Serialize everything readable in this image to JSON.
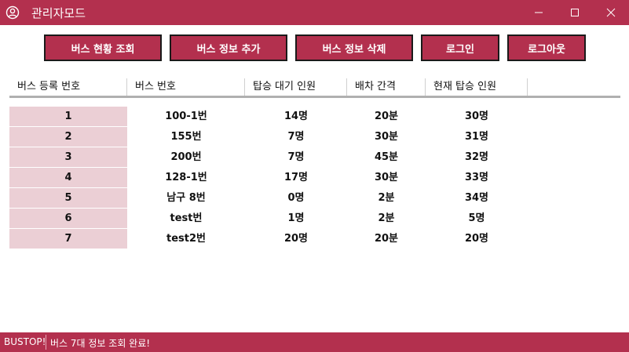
{
  "window": {
    "title": "관리자모드",
    "icon": "user-circle-icon"
  },
  "colors": {
    "accent": "#b3304e",
    "first_column_bg": "#ebcfd5"
  },
  "toolbar": {
    "buttons": [
      {
        "label": "버스 현황 조회"
      },
      {
        "label": "버스 정보 추가"
      },
      {
        "label": "버스 정보 삭제"
      },
      {
        "label": "로그인"
      },
      {
        "label": "로그아웃"
      }
    ]
  },
  "table": {
    "columns": [
      "버스 등록 번호",
      "버스 번호",
      "탑승 대기 인원",
      "배차 간격",
      "현재 탑승 인원"
    ],
    "rows": [
      [
        "1",
        "100-1번",
        "14명",
        "20분",
        "30명"
      ],
      [
        "2",
        "155번",
        "7명",
        "30분",
        "31명"
      ],
      [
        "3",
        "200번",
        "7명",
        "45분",
        "32명"
      ],
      [
        "4",
        "128-1번",
        "17명",
        "30분",
        "33명"
      ],
      [
        "5",
        "남구 8번",
        "0명",
        "2분",
        "34명"
      ],
      [
        "6",
        "test번",
        "1명",
        "2분",
        "5명"
      ],
      [
        "7",
        "test2번",
        "20명",
        "20분",
        "20명"
      ]
    ]
  },
  "status": {
    "app_name": "BUSTOP!",
    "message": "버스 7대 정보 조회 완료!"
  }
}
